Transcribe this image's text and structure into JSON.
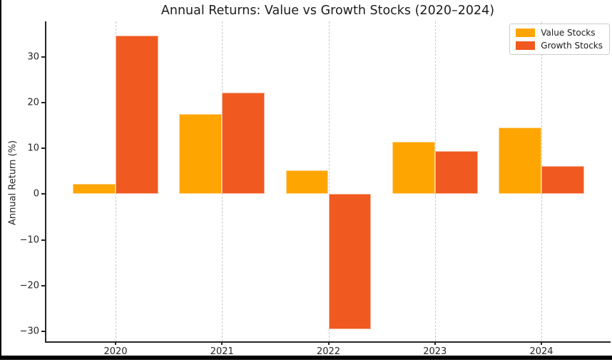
{
  "chart_data": {
    "type": "bar",
    "title": "Annual Returns: Value vs Growth Stocks (2020–2024)",
    "ylabel": "Annual Return (%)",
    "xlabel": "",
    "categories": [
      "2020",
      "2021",
      "2022",
      "2023",
      "2024"
    ],
    "series": [
      {
        "name": "Value Stocks",
        "color": "#FFA502",
        "values": [
          2.3,
          17.5,
          5.2,
          11.4,
          14.6
        ]
      },
      {
        "name": "Growth Stocks",
        "color": "#F0591F",
        "values": [
          34.7,
          22.2,
          -29.5,
          9.5,
          6.2
        ]
      }
    ],
    "ylim": [
      -32.2,
      37.8
    ],
    "yticks": [
      30,
      20,
      10,
      0,
      -10,
      -20,
      -30
    ],
    "grid": "vertical-dashed",
    "legend_position": "upper-right",
    "background": "#ffffff"
  }
}
